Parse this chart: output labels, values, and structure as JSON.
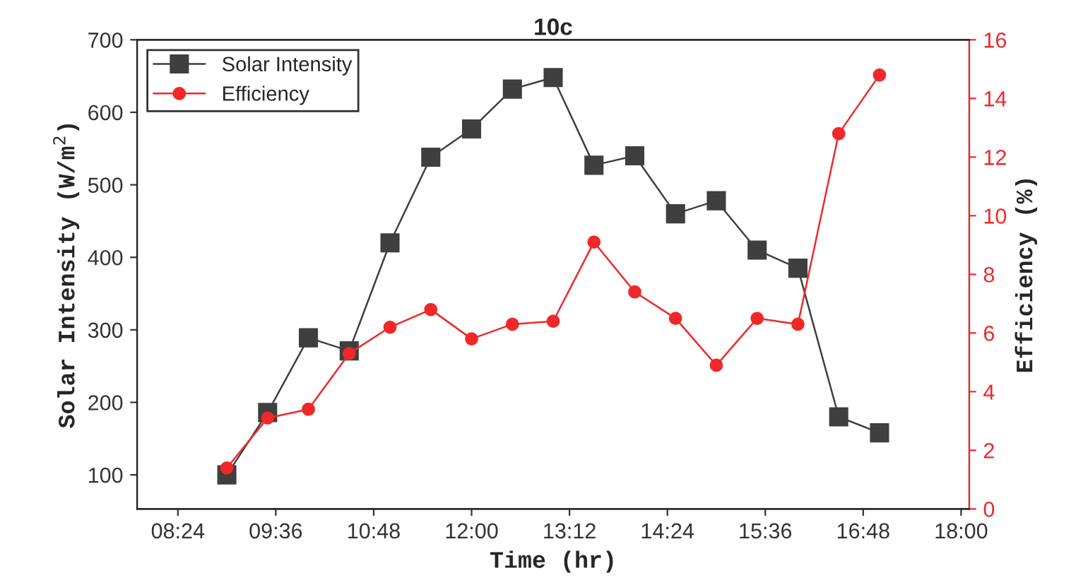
{
  "chart_data": {
    "type": "line",
    "title": "10c",
    "xlabel": "Time (hr)",
    "ylabel": "Solar Intensity (W/m$^{2}$)",
    "y2label": "Efficiency (%)",
    "x": [
      9,
      9.5,
      10,
      10.5,
      11,
      11.5,
      12,
      12.5,
      13,
      13.5,
      14,
      14.5,
      15,
      15.5,
      16,
      16.5,
      17
    ],
    "series": [
      {
        "name": "Solar Intensity",
        "color": "#3f3f3f",
        "marker": "square",
        "values": [
          100,
          186,
          289,
          271,
          420,
          538,
          577,
          632,
          648,
          527,
          540,
          460,
          478,
          410,
          385,
          180,
          158
        ]
      },
      {
        "name": "Efficiency",
        "color": "#f0282a",
        "marker": "circle",
        "axis": "y2",
        "values": [
          1.4,
          3.1,
          3.4,
          5.3,
          6.2,
          6.8,
          5.8,
          6.3,
          6.4,
          9.1,
          7.4,
          6.5,
          4.9,
          6.5,
          6.3,
          12.8,
          14.8
        ]
      }
    ],
    "xlim": [
      7.9,
      18.1
    ],
    "xticks": [
      {
        "value": 8.4,
        "label": "08:24"
      },
      {
        "value": 9.6,
        "label": "09:36"
      },
      {
        "value": 10.8,
        "label": "10:48"
      },
      {
        "value": 12,
        "label": "12:00"
      },
      {
        "value": 13.2,
        "label": "13:12"
      },
      {
        "value": 14.4,
        "label": "14:24"
      },
      {
        "value": 15.6,
        "label": "15:36"
      },
      {
        "value": 16.8,
        "label": "16:48"
      },
      {
        "value": 18,
        "label": "18:00"
      }
    ],
    "ylim": [
      53,
      700
    ],
    "yticks": [
      100,
      200,
      300,
      400,
      500,
      600,
      700
    ],
    "y2lim": [
      0,
      16
    ],
    "y2ticks": [
      0,
      2,
      4,
      6,
      8,
      10,
      12,
      14,
      16
    ],
    "legend": "top left",
    "grid": false,
    "line_style": "solid"
  }
}
